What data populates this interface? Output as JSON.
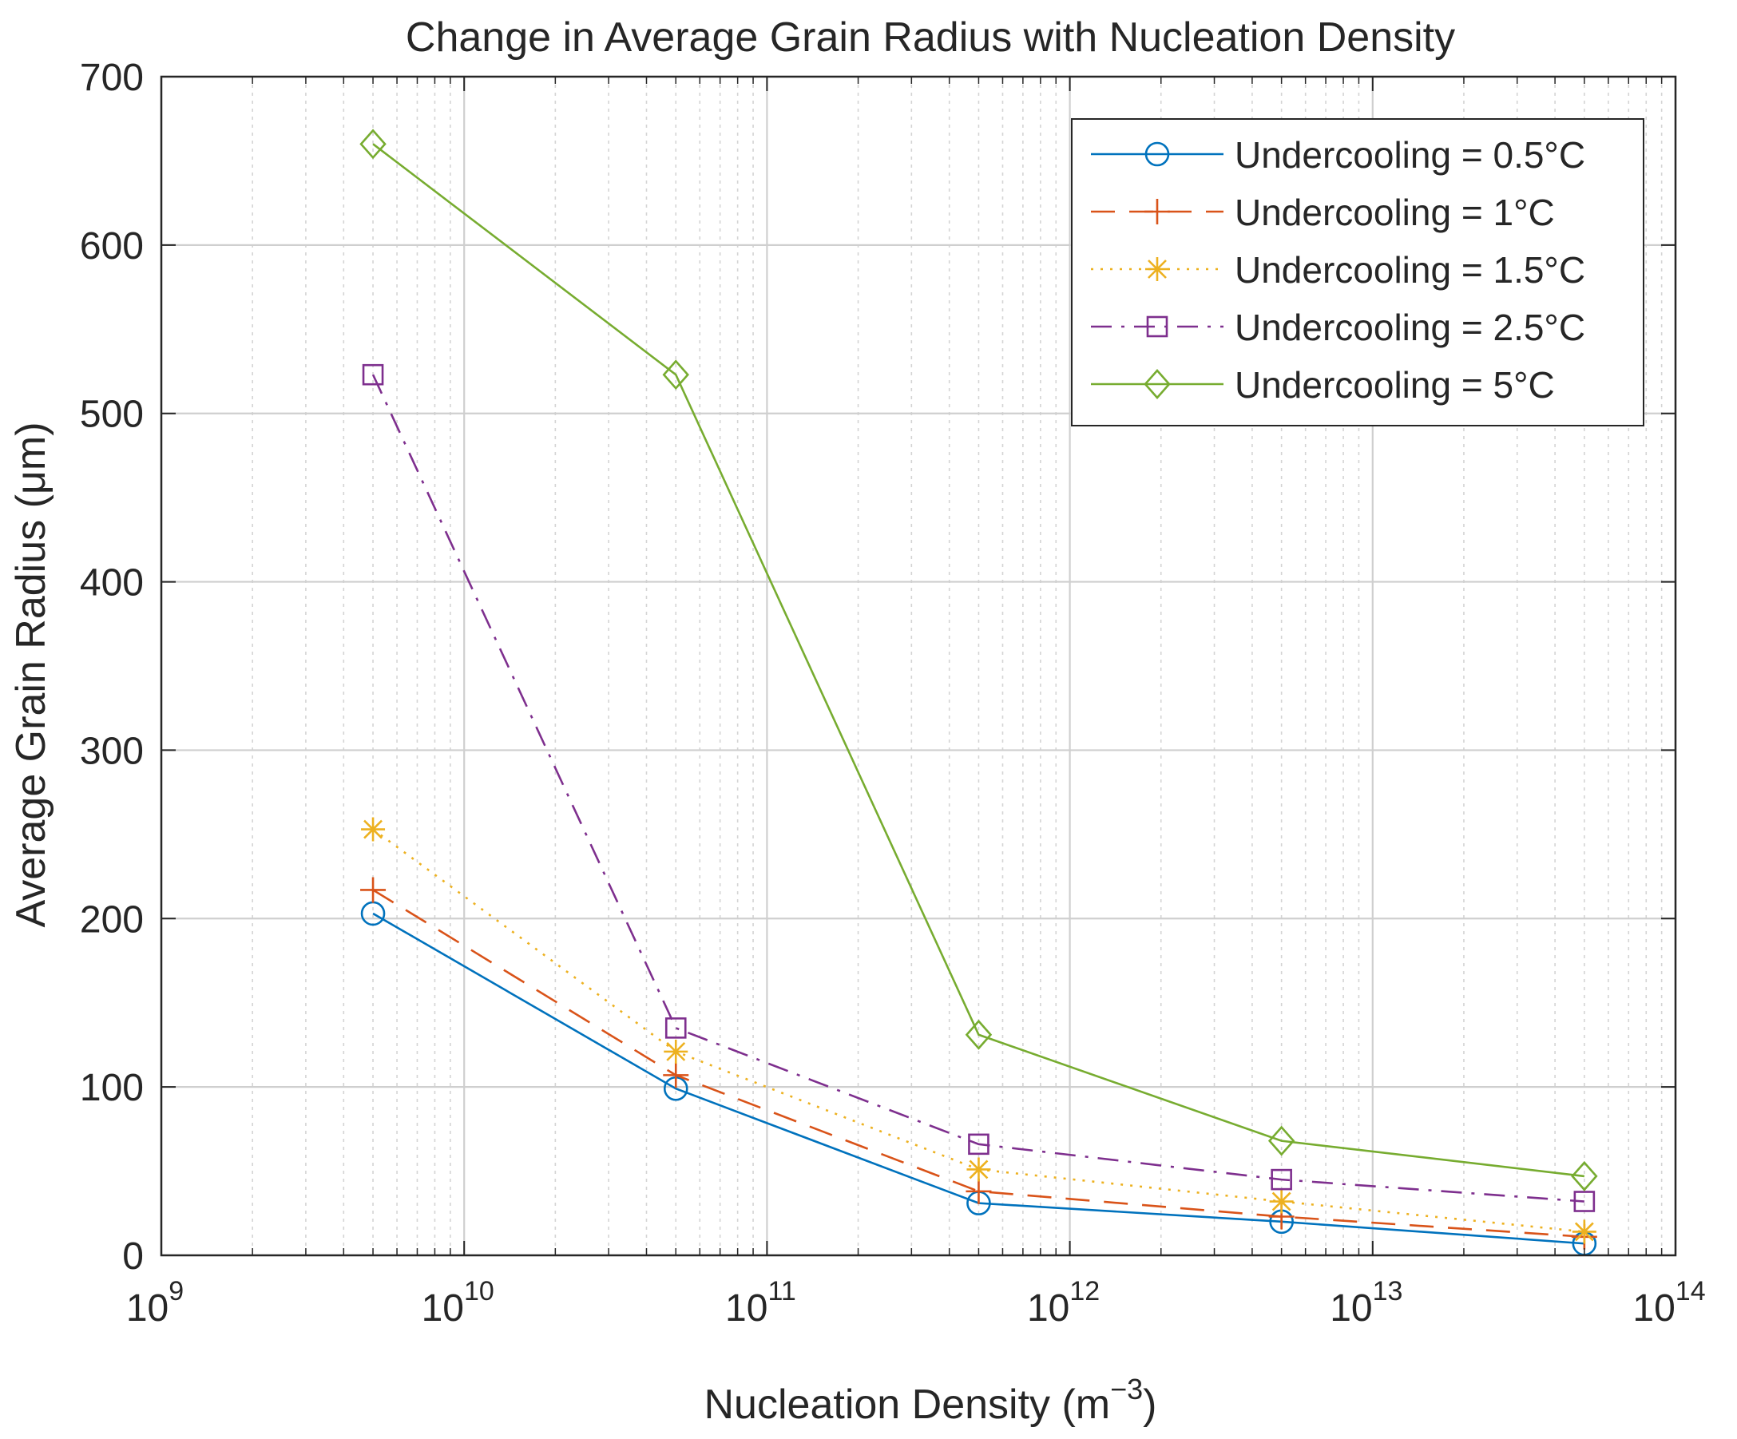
{
  "chart_data": {
    "type": "line",
    "title": "Change in Average Grain Radius with Nucleation Density",
    "xlabel": "Nucleation Density (m",
    "xlabel_sup": "−3",
    "xlabel_tail": ")",
    "ylabel": "Average Grain Radius (μm)",
    "xscale": "log",
    "xlim": [
      1000000000.0,
      100000000000000.0
    ],
    "ylim": [
      0,
      700
    ],
    "grid": true,
    "minor_grid": true,
    "legend_position": "top-right",
    "x_ticks": [
      {
        "value": 1000000000.0,
        "base": "10",
        "exp": "9"
      },
      {
        "value": 10000000000.0,
        "base": "10",
        "exp": "10"
      },
      {
        "value": 100000000000.0,
        "base": "10",
        "exp": "11"
      },
      {
        "value": 1000000000000.0,
        "base": "10",
        "exp": "12"
      },
      {
        "value": 10000000000000.0,
        "base": "10",
        "exp": "13"
      },
      {
        "value": 100000000000000.0,
        "base": "10",
        "exp": "14"
      }
    ],
    "y_ticks": [
      0,
      100,
      200,
      300,
      400,
      500,
      600,
      700
    ],
    "x": [
      5000000000.0,
      50000000000.0,
      500000000000.0,
      5000000000000.0,
      50000000000000.0
    ],
    "series": [
      {
        "name": "Undercooling = 0.5°C",
        "values": [
          203,
          99,
          31,
          20,
          7
        ],
        "color": "#0072BD",
        "marker": "circle",
        "dash": "solid"
      },
      {
        "name": "Undercooling = 1°C",
        "values": [
          217,
          107,
          38,
          23,
          11
        ],
        "color": "#D95319",
        "marker": "plus",
        "dash": "dashed"
      },
      {
        "name": "Undercooling = 1.5°C",
        "values": [
          253,
          121,
          51,
          32,
          14
        ],
        "color": "#EDB120",
        "marker": "asterisk",
        "dash": "dotted"
      },
      {
        "name": "Undercooling = 2.5°C",
        "values": [
          523,
          135,
          66,
          45,
          32
        ],
        "color": "#7E2F8E",
        "marker": "square",
        "dash": "dashdot"
      },
      {
        "name": "Undercooling = 5°C",
        "values": [
          660,
          523,
          131,
          68,
          47
        ],
        "color": "#77AC30",
        "marker": "diamond",
        "dash": "solid"
      }
    ]
  }
}
